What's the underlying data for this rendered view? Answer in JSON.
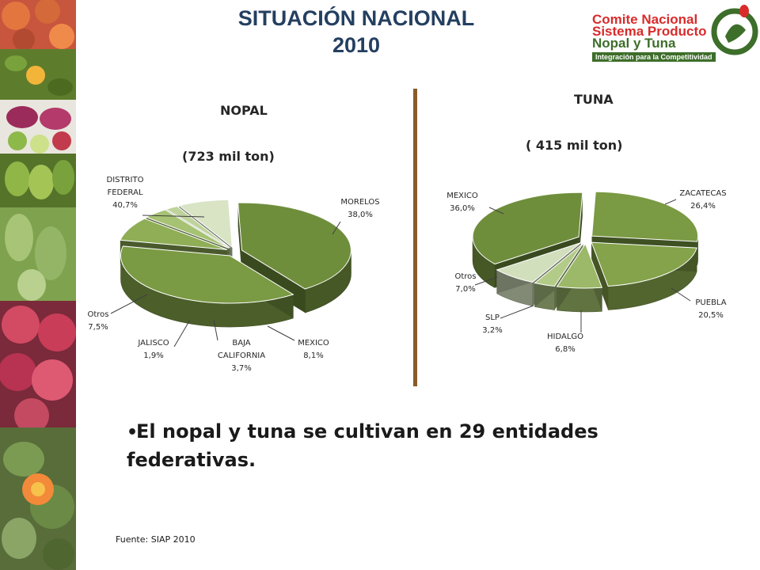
{
  "slide": {
    "title_line1": "SITUACIÓN NACIONAL",
    "title_line2": "2010"
  },
  "logo": {
    "line1": "Comite Nacional",
    "line2": "Sistema Producto",
    "line3": "Nopal y Tuna",
    "tagline": "Integración para la Competitividad"
  },
  "colors": {
    "title": "#243f60",
    "divider": "#8b5a2b",
    "logo_red": "#d92b2b",
    "logo_green": "#3d6e2a"
  },
  "nopal_heading": {
    "name": "NOPAL",
    "total": "(723 mil ton)"
  },
  "tuna_heading": {
    "name": "TUNA",
    "total": "( 415  mil ton)"
  },
  "chart_data": [
    {
      "type": "pie",
      "style": "3d-exploded",
      "title": "NOPAL",
      "subtitle": "(723 mil ton)",
      "unit": "%",
      "slices": [
        {
          "label_lines": [
            "DISTRITO",
            "FEDERAL",
            "40,7%"
          ],
          "name": "DISTRITO FEDERAL",
          "value": 40.7,
          "color": "#6f8e3c"
        },
        {
          "label_lines": [
            "MORELOS",
            "38,0%"
          ],
          "name": "MORELOS",
          "value": 38.0,
          "color": "#7a9a43"
        },
        {
          "label_lines": [
            "MEXICO",
            "8,1%"
          ],
          "name": "MEXICO",
          "value": 8.1,
          "color": "#8fae55"
        },
        {
          "label_lines": [
            "BAJA",
            "CALIFORNIA",
            "3,7%"
          ],
          "name": "BAJA CALIFORNIA",
          "value": 3.7,
          "color": "#a6c273"
        },
        {
          "label_lines": [
            "JALISCO",
            "1,9%"
          ],
          "name": "JALISCO",
          "value": 1.9,
          "color": "#bfd39c"
        },
        {
          "label_lines": [
            "Otros",
            "7,5%"
          ],
          "name": "Otros",
          "value": 7.5,
          "color": "#d8e4c4"
        }
      ]
    },
    {
      "type": "pie",
      "style": "3d-exploded",
      "title": "TUNA",
      "subtitle": "( 415  mil ton)",
      "unit": "%",
      "slices": [
        {
          "label_lines": [
            "ZACATECAS",
            "26,4%"
          ],
          "name": "ZACATECAS",
          "value": 26.4,
          "color": "#7a9a43"
        },
        {
          "label_lines": [
            "PUEBLA",
            "20,5%"
          ],
          "name": "PUEBLA",
          "value": 20.5,
          "color": "#84a34a"
        },
        {
          "label_lines": [
            "HIDALGO",
            "6,8%"
          ],
          "name": "HIDALGO",
          "value": 6.8,
          "color": "#9bb968"
        },
        {
          "label_lines": [
            "SLP",
            "3,2%"
          ],
          "name": "SLP",
          "value": 3.2,
          "color": "#b3cb88"
        },
        {
          "label_lines": [
            "Otros",
            "7,0%"
          ],
          "name": "Otros",
          "value": 7.0,
          "color": "#d2dfbd"
        },
        {
          "label_lines": [
            "MEXICO",
            "36,0%"
          ],
          "name": "MEXICO",
          "value": 36.0,
          "color": "#6f8e3c"
        }
      ]
    }
  ],
  "bullet": {
    "text": "El nopal y tuna se cultivan en 29 entidades federativas."
  },
  "source": "Fuente: SIAP 2010"
}
